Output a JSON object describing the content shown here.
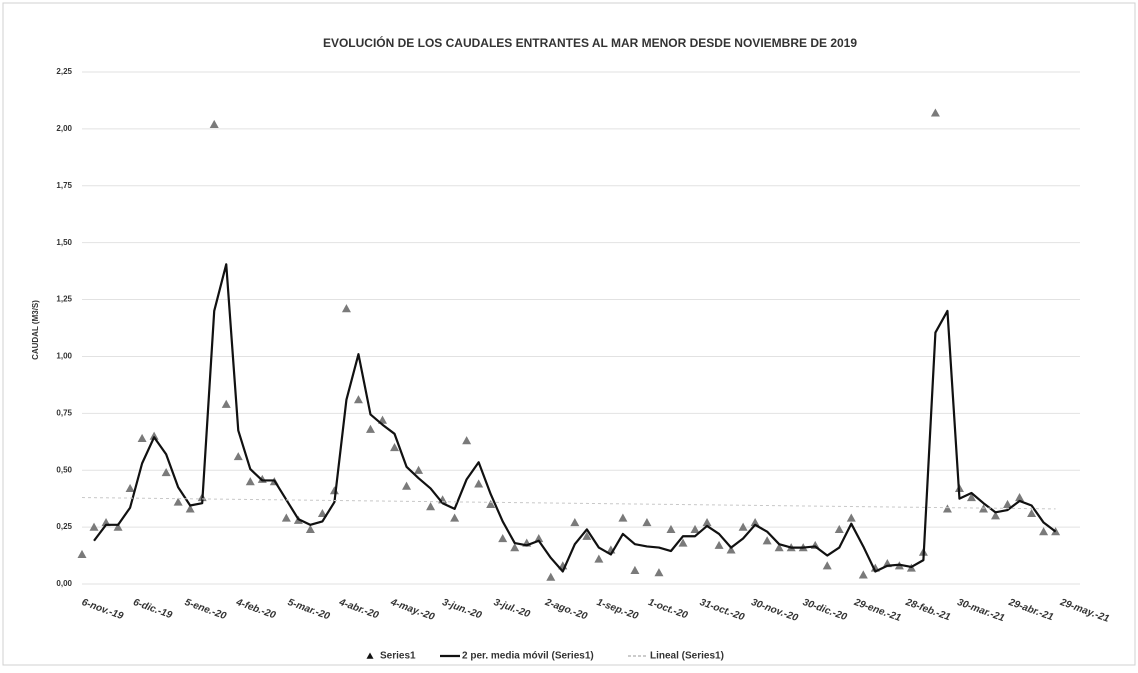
{
  "chart_data": {
    "type": "scatter",
    "title": "EVOLUCIÓN DE LOS CAUDALES ENTRANTES AL MAR MENOR DESDE NOVIEMBRE DE 2019",
    "y_label": "CAUDAL (M3/S)",
    "x_tick_labels": [
      "6-nov.-19",
      "6-dic.-19",
      "5-ene.-20",
      "4-feb.-20",
      "5-mar.-20",
      "4-abr.-20",
      "4-may.-20",
      "3-jun.-20",
      "3-jul.-20",
      "2-ago.-20",
      "1-sep.-20",
      "1-oct.-20",
      "31-oct.-20",
      "30-nov.-20",
      "30-dic.-20",
      "29-ene.-21",
      "28-feb.-21",
      "30-mar.-21",
      "29-abr.-21",
      "29-may.-21"
    ],
    "ylim": [
      0,
      2.25
    ],
    "yticks": [
      {
        "value": 0,
        "label": "0,00"
      },
      {
        "value": 0.25,
        "label": "0,25"
      },
      {
        "value": 0.5,
        "label": "0,50"
      },
      {
        "value": 0.75,
        "label": "0,75"
      },
      {
        "value": 1,
        "label": "1,00"
      },
      {
        "value": 1.25,
        "label": "1,25"
      },
      {
        "value": 1.5,
        "label": "1,50"
      },
      {
        "value": 1.75,
        "label": "1,75"
      },
      {
        "value": 2,
        "label": "2,00"
      },
      {
        "value": 2.25,
        "label": "2,25"
      }
    ],
    "grid": true,
    "legend": "bottom",
    "series": [
      {
        "name": "Series1",
        "kind": "markers",
        "color": "#7a7a7a",
        "values": [
          0.13,
          0.25,
          0.27,
          0.25,
          0.42,
          0.64,
          0.65,
          0.49,
          0.36,
          0.33,
          0.38,
          2.02,
          0.79,
          0.56,
          0.45,
          0.46,
          0.45,
          0.29,
          0.28,
          0.24,
          0.31,
          0.41,
          1.21,
          0.81,
          0.68,
          0.72,
          0.6,
          0.43,
          0.5,
          0.34,
          0.37,
          0.29,
          0.63,
          0.44,
          0.35,
          0.2,
          0.16,
          0.18,
          0.2,
          0.03,
          0.08,
          0.27,
          0.21,
          0.11,
          0.15,
          0.29,
          0.06,
          0.27,
          0.05,
          0.24,
          0.18,
          0.24,
          0.27,
          0.17,
          0.15,
          0.25,
          0.27,
          0.19,
          0.16,
          0.16,
          0.16,
          0.17,
          0.08,
          0.24,
          0.29,
          0.04,
          0.07,
          0.09,
          0.08,
          0.07,
          0.14,
          2.07,
          0.33,
          0.42,
          0.38,
          0.33,
          0.3,
          0.35,
          0.38,
          0.31,
          0.23,
          0.23
        ]
      },
      {
        "name": "2 per. media móvil (Series1)",
        "kind": "line",
        "color": "#111111",
        "values": [
          null,
          0.19,
          0.26,
          0.26,
          0.335,
          0.53,
          0.645,
          0.57,
          0.425,
          0.345,
          0.355,
          1.2,
          1.405,
          0.675,
          0.505,
          0.455,
          0.455,
          0.37,
          0.285,
          0.26,
          0.275,
          0.36,
          0.81,
          1.01,
          0.745,
          0.7,
          0.66,
          0.515,
          0.465,
          0.42,
          0.355,
          0.33,
          0.46,
          0.535,
          0.395,
          0.275,
          0.18,
          0.17,
          0.19,
          0.115,
          0.055,
          0.175,
          0.24,
          0.16,
          0.13,
          0.22,
          0.175,
          0.165,
          0.16,
          0.145,
          0.21,
          0.21,
          0.255,
          0.22,
          0.16,
          0.2,
          0.26,
          0.23,
          0.175,
          0.16,
          0.16,
          0.165,
          0.125,
          0.16,
          0.265,
          0.165,
          0.055,
          0.08,
          0.085,
          0.075,
          0.105,
          1.105,
          1.2,
          0.375,
          0.4,
          0.355,
          0.315,
          0.325,
          0.365,
          0.345,
          0.27,
          0.23
        ]
      },
      {
        "name": "Lineal (Series1)",
        "kind": "trend",
        "color": "#c8c8c8",
        "values": [
          0.38,
          0.33
        ]
      }
    ]
  }
}
